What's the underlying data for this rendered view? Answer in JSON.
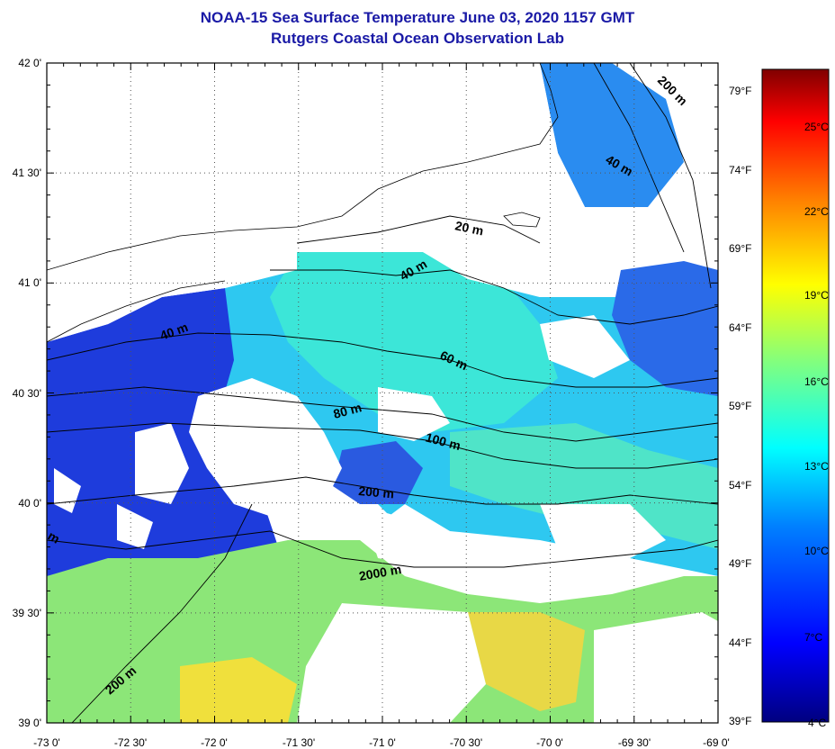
{
  "title": "NOAA-15 Sea Surface Temperature June 03, 2020 1157 GMT",
  "subtitle": "Rutgers Coastal Ocean Observation Lab",
  "map": {
    "lon_labels": [
      "-73 0'",
      "-72 30'",
      "-72 0'",
      "-71 30'",
      "-71 0'",
      "-70 30'",
      "-70 0'",
      "-69 30'",
      "-69 0'"
    ],
    "lat_labels": [
      "42 0'",
      "41 30'",
      "41 0'",
      "40 30'",
      "40 0'",
      "39 30'",
      "39 0'"
    ],
    "fahrenheit_labels": [
      "79°F",
      "74°F",
      "69°F",
      "64°F",
      "59°F",
      "54°F",
      "49°F",
      "44°F",
      "39°F"
    ],
    "lon_range": [
      -73,
      -69
    ],
    "lat_range": [
      39,
      42
    ],
    "grid": "dotted",
    "contour_labels": [
      "200 m",
      "40 m",
      "20 m",
      "40 m",
      "40 m",
      "60 m",
      "80 m",
      "100 m",
      "200 m",
      "2000 m",
      "200 m",
      "m"
    ],
    "fill_colors": {
      "cold": "#1e3cdc",
      "cool": "#2a8cf0",
      "mid": "#22c8f0",
      "aqua": "#3ce6d8",
      "green": "#8ce678",
      "yellow": "#f0e03c",
      "warm": "#e6c83c",
      "cloud": "#ffffff",
      "contour": "#000000"
    }
  },
  "colorbar": {
    "labels": [
      "25°C",
      "22°C",
      "19°C",
      "16°C",
      "13°C",
      "10°C",
      "7°C",
      "4°C"
    ],
    "min_c": 4,
    "max_c": 28,
    "gradient": [
      "#000080",
      "#0000ff",
      "#0080ff",
      "#00ffff",
      "#80ff80",
      "#ffff00",
      "#ff8000",
      "#ff0000",
      "#800000"
    ]
  }
}
